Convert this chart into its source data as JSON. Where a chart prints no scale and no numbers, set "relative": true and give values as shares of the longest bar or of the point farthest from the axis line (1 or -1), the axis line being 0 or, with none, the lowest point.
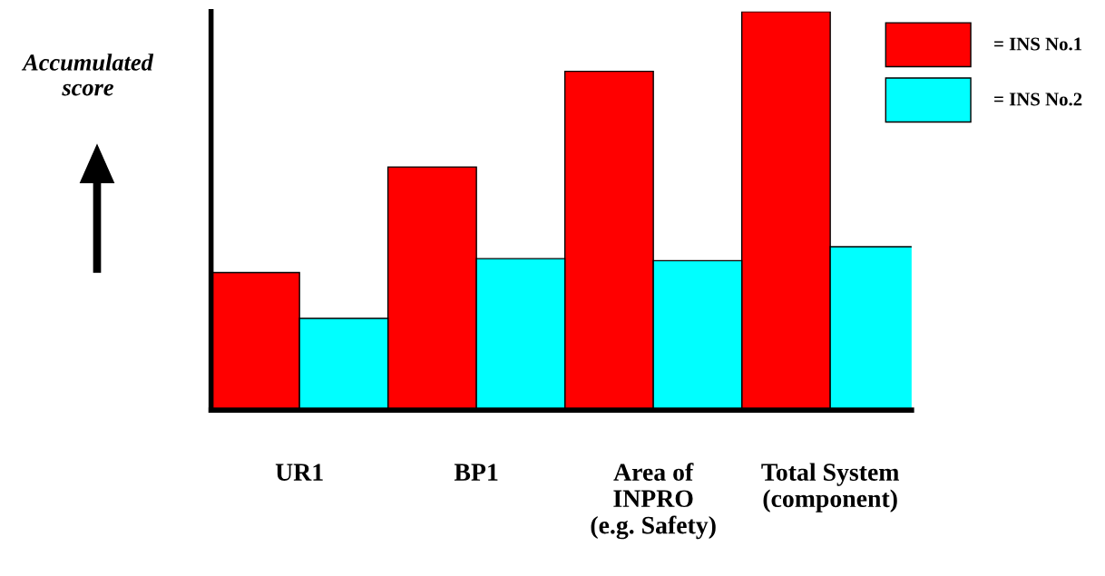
{
  "chart_data": {
    "type": "bar",
    "relative": true,
    "ylabel": "Accumulated score",
    "categories": [
      "UR1",
      "BP1",
      "Area of\nINPRO\n(e.g. Safety)",
      "Total System\n(component)"
    ],
    "series": [
      {
        "name": "= INS No.1",
        "color": "#ff0000",
        "values": [
          0.345,
          0.61,
          0.85,
          1
        ]
      },
      {
        "name": "= INS No.2",
        "color": "#00ffff",
        "values": [
          0.23,
          0.38,
          0.375,
          0.41
        ]
      }
    ],
    "legend": "top right",
    "grid": false
  }
}
